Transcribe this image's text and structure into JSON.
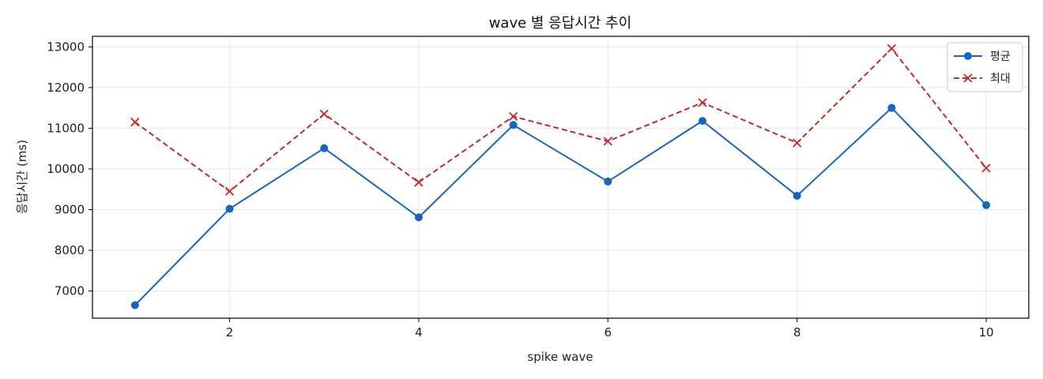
{
  "chart_data": {
    "type": "line",
    "title": "wave 별 응답시간 추이",
    "xlabel": "spike wave",
    "ylabel": "응답시간 (ms)",
    "x": [
      1,
      2,
      3,
      4,
      5,
      6,
      7,
      8,
      9,
      10
    ],
    "xlim": [
      0.55,
      10.45
    ],
    "ylim": [
      6330,
      13260
    ],
    "x_ticks": [
      2,
      4,
      6,
      8,
      10
    ],
    "y_ticks": [
      7000,
      8000,
      9000,
      10000,
      11000,
      12000,
      13000
    ],
    "grid": true,
    "legend_position": "top-right",
    "series": [
      {
        "name": "평균",
        "color": "#1565c0",
        "marker": "circle",
        "line_style": "solid",
        "values": [
          6650,
          9020,
          10510,
          8810,
          11080,
          9690,
          11180,
          9340,
          11500,
          9110
        ]
      },
      {
        "name": "최대",
        "color": "#c62828",
        "marker": "x",
        "line_style": "dashed",
        "values": [
          11150,
          9450,
          11350,
          9670,
          11290,
          10680,
          11630,
          10640,
          12960,
          10020
        ]
      }
    ]
  }
}
